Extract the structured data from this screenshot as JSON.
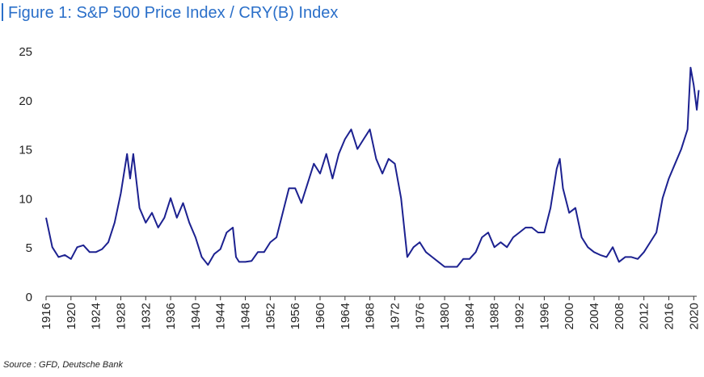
{
  "chart_data": {
    "type": "line",
    "title": "Figure 1: S&P 500 Price Index / CRY(B) Index",
    "source": "Source : GFD, Deutsche Bank",
    "x": [
      1916,
      1917,
      1918,
      1919,
      1920,
      1921,
      1922,
      1923,
      1924,
      1925,
      1926,
      1927,
      1928,
      1929,
      1929.5,
      1930,
      1931,
      1932,
      1933,
      1934,
      1935,
      1936,
      1937,
      1938,
      1939,
      1940,
      1941,
      1942,
      1943,
      1944,
      1945,
      1946,
      1946.5,
      1947,
      1948,
      1949,
      1950,
      1951,
      1952,
      1953,
      1954,
      1955,
      1956,
      1957,
      1958,
      1959,
      1960,
      1961,
      1962,
      1963,
      1964,
      1965,
      1966,
      1967,
      1968,
      1969,
      1970,
      1971,
      1972,
      1973,
      1974,
      1975,
      1976,
      1977,
      1978,
      1979,
      1980,
      1981,
      1982,
      1983,
      1984,
      1985,
      1986,
      1987,
      1988,
      1989,
      1990,
      1991,
      1992,
      1993,
      1994,
      1995,
      1996,
      1997,
      1998,
      1998.5,
      1999,
      2000,
      2001,
      2002,
      2003,
      2004,
      2005,
      2006,
      2007,
      2008,
      2009,
      2010,
      2011,
      2012,
      2013,
      2014,
      2015,
      2016,
      2017,
      2018,
      2019,
      2019.5,
      2020,
      2020.5,
      2020.8
    ],
    "series": [
      {
        "color": "#1c2190",
        "values": [
          8,
          5,
          4,
          4.2,
          3.8,
          5,
          5.2,
          4.5,
          4.5,
          4.8,
          5.5,
          7.5,
          10.5,
          14.5,
          12,
          14.5,
          9,
          7.5,
          8.5,
          7,
          8,
          10,
          8,
          9.5,
          7.5,
          6,
          4,
          3.2,
          4.3,
          4.8,
          6.5,
          7,
          4,
          3.5,
          3.5,
          3.6,
          4.5,
          4.5,
          5.5,
          6,
          8.5,
          11,
          11,
          9.5,
          11.5,
          13.5,
          12.5,
          14.5,
          12,
          14.5,
          16,
          17,
          15,
          16,
          17,
          14,
          12.5,
          14,
          13.5,
          10,
          4,
          5,
          5.5,
          4.5,
          4,
          3.5,
          3,
          3,
          3,
          3.8,
          3.8,
          4.5,
          6,
          6.5,
          5,
          5.5,
          5,
          6,
          6.5,
          7,
          7,
          6.5,
          6.5,
          9,
          13,
          14,
          11,
          8.5,
          9,
          6,
          5,
          4.5,
          4.2,
          4,
          5,
          3.5,
          4,
          4,
          3.8,
          4.5,
          5.5,
          6.5,
          10,
          12,
          13.5,
          15,
          17,
          23.3,
          21.5,
          19,
          21
        ]
      }
    ],
    "xlim": [
      1916,
      2021
    ],
    "xticks": [
      1916,
      1920,
      1924,
      1928,
      1932,
      1936,
      1940,
      1944,
      1948,
      1952,
      1956,
      1960,
      1964,
      1968,
      1972,
      1976,
      1980,
      1984,
      1988,
      1992,
      1996,
      2000,
      2004,
      2008,
      2012,
      2016,
      2020
    ],
    "ylim": [
      0,
      25
    ],
    "yticks": [
      0,
      5,
      10,
      15,
      20,
      25
    ]
  }
}
